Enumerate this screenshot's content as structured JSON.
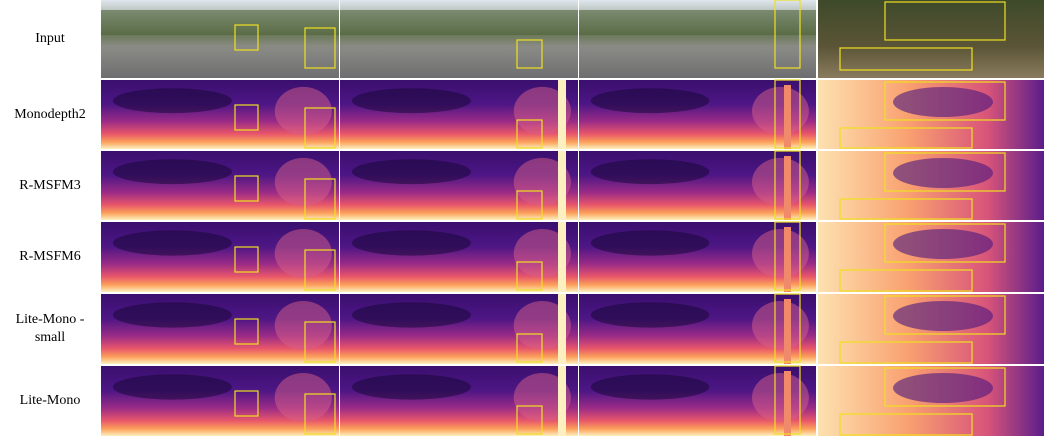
{
  "rows": [
    {
      "label": "Input"
    },
    {
      "label": "Monodepth2"
    },
    {
      "label": "R-MSFM3"
    },
    {
      "label": "R-MSFM6"
    },
    {
      "label": "Lite-Mono -small"
    },
    {
      "label": "Lite-Mono"
    }
  ]
}
